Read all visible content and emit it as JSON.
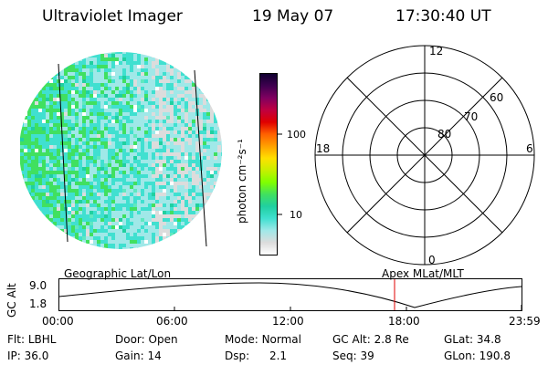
{
  "header": {
    "instrument": "Ultraviolet Imager",
    "date": "19 May 07",
    "time": "17:30:40 UT"
  },
  "colorbar": {
    "unit_label": "photon cm⁻²s⁻¹",
    "tick_labels": [
      "100",
      "10"
    ],
    "tick_values": [
      100,
      10
    ],
    "range": [
      2,
      1000
    ],
    "scale": "log",
    "colors": [
      "#ffffff",
      "#dcdcdc",
      "#a0e8e8",
      "#40e0d0",
      "#20d0a0",
      "#40e060",
      "#80ff00",
      "#c8f000",
      "#ffe000",
      "#ffa000",
      "#ff6000",
      "#e00000",
      "#c00040",
      "#800060",
      "#400050",
      "#100030"
    ]
  },
  "polar": {
    "ring_labels": [
      "80",
      "70",
      "60"
    ],
    "mlt_labels": {
      "top": "12",
      "left": "18",
      "right": "6",
      "bottom": "0"
    }
  },
  "track": {
    "title_left": "Geographic Lat/Lon",
    "title_right": "Apex MLat/MLT",
    "ylabel": "GC Alt",
    "y_tick_labels": [
      "9.0",
      "1.8"
    ],
    "x_tick_labels": [
      "00:00",
      "06:00",
      "12:00",
      "18:00",
      "23:59"
    ],
    "marker_color": "#e00000"
  },
  "info": {
    "row1": [
      {
        "label": "Flt:",
        "value": "LBHL"
      },
      {
        "label": "Door:",
        "value": "Open"
      },
      {
        "label": "Mode:",
        "value": "Normal"
      },
      {
        "label": "GC Alt:",
        "value": "2.8 Re"
      },
      {
        "label": "GLat:",
        "value": "34.8"
      }
    ],
    "row2": [
      {
        "label": "IP:",
        "value": "36.0"
      },
      {
        "label": "Gain:",
        "value": "14"
      },
      {
        "label": "Dsp:",
        "value": "2.1"
      },
      {
        "label": "Seq:",
        "value": "39"
      },
      {
        "label": "GLon:",
        "value": "190.8"
      }
    ]
  }
}
